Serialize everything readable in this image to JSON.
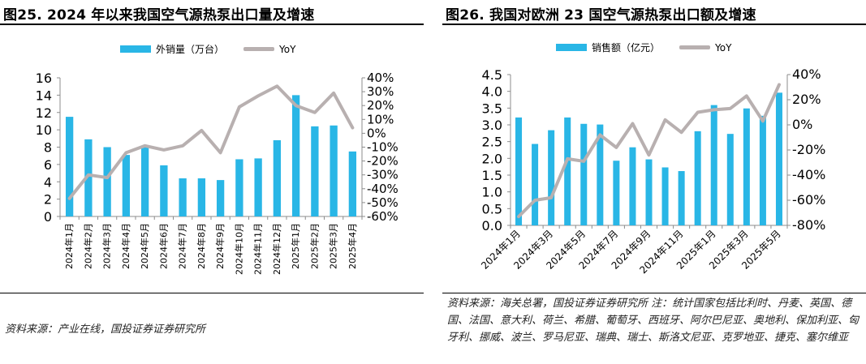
{
  "panels": [
    {
      "title": "图25. 2024 年以来我国空气源热泵出口量及增速",
      "source": "资料来源：产业在线，国投证券证券研究所",
      "colors": {
        "bar": "#29b6e6",
        "line": "#b8b0b0"
      }
    },
    {
      "title": "图26. 我国对欧洲 23 国空气源热泵出口额及增速",
      "source": "资料来源：海关总署，国投证券证券研究所 注：统计国家包括比利时、丹麦、英国、德国、法国、意大利、荷兰、希腊、葡萄牙、西班牙、阿尔巴尼亚、奥地利、保加利亚、匈牙利、挪威、波兰、罗马尼亚、瑞典、瑞士、斯洛文尼亚、克罗地亚、捷克、塞尔维亚",
      "colors": {
        "bar": "#29b6e6",
        "line": "#b8b0b0"
      }
    }
  ],
  "chart_data": [
    {
      "type": "bar",
      "categories": [
        "2024年1月",
        "2024年2月",
        "2024年3月",
        "2024年4月",
        "2024年5月",
        "2024年6月",
        "2024年7月",
        "2024年8月",
        "2024年9月",
        "2024年10月",
        "2024年11月",
        "2024年12月",
        "2025年1月",
        "2025年2月",
        "2025年3月",
        "2025年4月"
      ],
      "category_labels": [
        "2024年1月",
        "2024年2月",
        "2024年3月",
        "2024年4月",
        "2024年5月",
        "2024年6月",
        "2024年7月",
        "2024年8月",
        "2024年9月",
        "2024年10月",
        "2024年11月",
        "2024年12月",
        "2025年1月",
        "2025年2月",
        "2025年3月",
        "2025年4月"
      ],
      "series": [
        {
          "name": "外销量（万台）",
          "type": "bar",
          "axis": "left",
          "values": [
            11.5,
            8.9,
            8.0,
            7.1,
            8.0,
            5.9,
            4.4,
            4.4,
            4.2,
            6.6,
            6.7,
            8.8,
            14.0,
            10.4,
            10.5,
            7.5
          ]
        },
        {
          "name": "YoY",
          "type": "line",
          "axis": "right",
          "values": [
            -47,
            -30,
            -32,
            -14,
            -9,
            -12,
            -9,
            2,
            -14,
            19,
            27,
            34,
            20,
            15,
            29,
            4
          ]
        }
      ],
      "ylim": [
        0,
        16
      ],
      "yticks": [
        "0",
        "2",
        "4",
        "6",
        "8",
        "10",
        "12",
        "14",
        "16"
      ],
      "ylim_right": [
        -60,
        40
      ],
      "yticks_right": [
        "-60%",
        "-50%",
        "-40%",
        "-30%",
        "-20%",
        "-10%",
        "0%",
        "10%",
        "20%",
        "30%",
        "40%"
      ],
      "legend_position": "top",
      "grid": false
    },
    {
      "type": "bar",
      "categories": [
        "2024年1月",
        "2024年2月",
        "2024年3月",
        "2024年4月",
        "2024年5月",
        "2024年6月",
        "2024年7月",
        "2024年8月",
        "2024年9月",
        "2024年10月",
        "2024年11月",
        "2024年12月",
        "2025年1月",
        "2025年2月",
        "2025年3月",
        "2025年4月",
        "2025年5月"
      ],
      "category_labels": [
        "2024年1月",
        "",
        "2024年3月",
        "",
        "2024年5月",
        "",
        "2024年7月",
        "",
        "2024年9月",
        "",
        "2024年11月",
        "",
        "2025年1月",
        "",
        "2025年3月",
        "",
        "2025年5月"
      ],
      "series": [
        {
          "name": "销售额（亿元）",
          "type": "bar",
          "axis": "left",
          "values": [
            3.22,
            2.43,
            2.84,
            3.22,
            3.03,
            3.01,
            1.93,
            2.33,
            1.97,
            1.73,
            1.62,
            2.81,
            3.59,
            2.73,
            3.49,
            3.27,
            3.96
          ]
        },
        {
          "name": "YoY",
          "type": "line",
          "axis": "right",
          "values": [
            -73,
            -60,
            -58,
            -27,
            -29,
            -8,
            -18,
            1,
            -24,
            4,
            -6,
            10,
            12,
            13,
            23,
            3,
            32
          ]
        }
      ],
      "ylim": [
        0,
        4.5
      ],
      "yticks": [
        "0.0",
        "0.5",
        "1.0",
        "1.5",
        "2.0",
        "2.5",
        "3.0",
        "3.5",
        "4.0",
        "4.5"
      ],
      "ylim_right": [
        -80,
        40
      ],
      "yticks_right": [
        "-80%",
        "-60%",
        "-40%",
        "-20%",
        "0%",
        "20%",
        "40%"
      ],
      "legend_position": "top",
      "grid": false
    }
  ]
}
